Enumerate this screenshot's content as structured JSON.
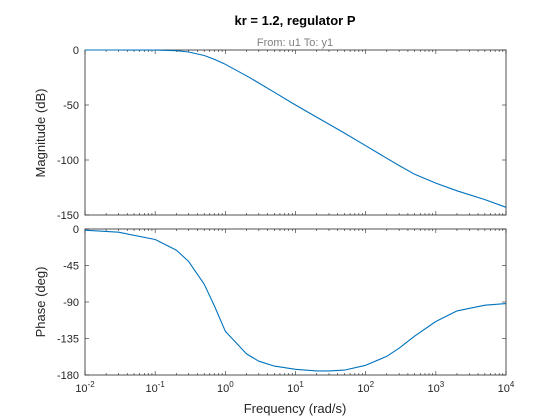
{
  "chart_data": {
    "type": "line",
    "title": "kr = 1.2, regulator P",
    "subtitle": "From: u1  To: y1",
    "xlabel": "Frequency  (rad/s)",
    "xscale": "log",
    "xlim": [
      0.01,
      10000
    ],
    "x_ticks": [
      {
        "base": "10",
        "exp": "-2"
      },
      {
        "base": "10",
        "exp": "-1"
      },
      {
        "base": "10",
        "exp": "0"
      },
      {
        "base": "10",
        "exp": "1"
      },
      {
        "base": "10",
        "exp": "2"
      },
      {
        "base": "10",
        "exp": "3"
      },
      {
        "base": "10",
        "exp": "4"
      }
    ],
    "line_color": "#0072bd",
    "grid": false,
    "panels": [
      {
        "ylabel": "Magnitude (dB)",
        "ylim": [
          -150,
          0
        ],
        "y_ticks": [
          "0",
          "-50",
          "-100",
          "-150"
        ],
        "series": [
          {
            "x": [
              0.01,
              0.03,
              0.1,
              0.2,
              0.3,
              0.5,
              0.7,
              1,
              2,
              3,
              5,
              10,
              20,
              50,
              100,
              200,
              300,
              500,
              1000,
              2000,
              5000,
              10000
            ],
            "y": [
              0,
              0,
              -0.1,
              -0.6,
              -1.8,
              -5,
              -8.5,
              -13,
              -23.5,
              -30,
              -38.5,
              -50,
              -61,
              -75.5,
              -87,
              -98.5,
              -105,
              -113,
              -121,
              -128,
              -136,
              -143
            ]
          }
        ]
      },
      {
        "ylabel": "Phase (deg)",
        "ylim": [
          -180,
          0
        ],
        "y_ticks": [
          "0",
          "-45",
          "-90",
          "-135",
          "-180"
        ],
        "series": [
          {
            "x": [
              0.01,
              0.03,
              0.1,
              0.2,
              0.3,
              0.5,
              0.7,
              1,
              2,
              3,
              5,
              10,
              20,
              30,
              50,
              100,
              200,
              300,
              500,
              1000,
              2000,
              5000,
              10000
            ],
            "y": [
              -1.5,
              -4,
              -13,
              -26,
              -40,
              -68,
              -95,
              -126,
              -154,
              -163,
              -169,
              -173,
              -175,
              -175,
              -174,
              -168,
              -157,
              -147,
              -132,
              -114,
              -101,
              -94,
              -92
            ]
          }
        ]
      }
    ]
  }
}
